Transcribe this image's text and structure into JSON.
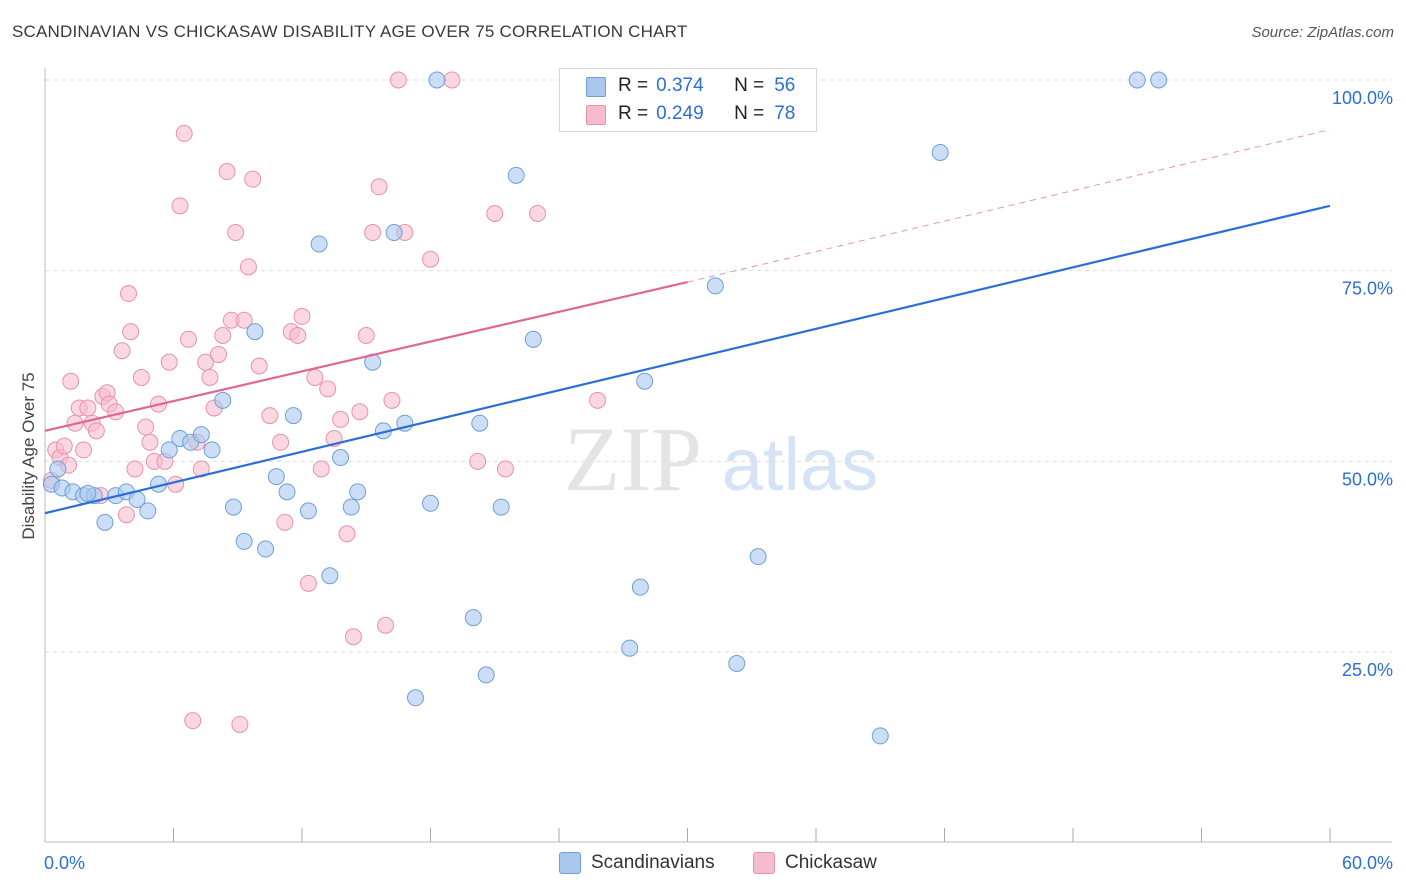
{
  "title": "SCANDINAVIAN VS CHICKASAW DISABILITY AGE OVER 75 CORRELATION CHART",
  "source": "Source: ZipAtlas.com",
  "watermark": {
    "zip": "ZIP",
    "atlas": "atlas"
  },
  "legend": {
    "rows": [
      {
        "r_label": "R =",
        "r_value": "0.374",
        "n_label": "N =",
        "n_value": "56"
      },
      {
        "r_label": "R =",
        "r_value": "0.249",
        "n_label": "N =",
        "n_value": "78"
      }
    ]
  },
  "bottom_legend": {
    "series1": "Scandinavians",
    "series2": "Chickasaw"
  },
  "colors": {
    "blue_fill": "#aac8ee",
    "blue_stroke": "#6f9fd8",
    "blue_line": "#2a6fd6",
    "pink_fill": "#f6bccd",
    "pink_stroke": "#e892ad",
    "pink_line": "#e0668f",
    "grid": "#dddddd",
    "axis_label": "#2a6fd6"
  },
  "chart_data": {
    "type": "scatter",
    "title": "SCANDINAVIAN VS CHICKASAW DISABILITY AGE OVER 75 CORRELATION CHART",
    "xlabel": "",
    "ylabel": "Disability Age Over 75",
    "xlim": [
      0,
      60
    ],
    "ylim": [
      0,
      105
    ],
    "x_tick_labels": [
      "0.0%",
      "60.0%"
    ],
    "y_tick_labels": [
      "25.0%",
      "50.0%",
      "75.0%",
      "100.0%"
    ],
    "y_ticks": [
      25,
      50,
      75,
      100
    ],
    "grid": true,
    "series": [
      {
        "name": "Scandinavians",
        "color": "#6f9fd8",
        "trend": {
          "x": [
            0,
            60
          ],
          "y": [
            43.2,
            83.5
          ]
        },
        "points": [
          [
            0.3,
            47.0
          ],
          [
            0.8,
            46.5
          ],
          [
            1.3,
            46.0
          ],
          [
            1.8,
            45.5
          ],
          [
            2.3,
            45.5
          ],
          [
            2.8,
            42.0
          ],
          [
            3.3,
            45.5
          ],
          [
            3.8,
            46.0
          ],
          [
            4.3,
            45.0
          ],
          [
            4.8,
            43.5
          ],
          [
            5.3,
            47.0
          ],
          [
            5.8,
            51.5
          ],
          [
            6.3,
            53.0
          ],
          [
            6.8,
            52.5
          ],
          [
            7.3,
            53.5
          ],
          [
            7.8,
            51.5
          ],
          [
            8.3,
            58.0
          ],
          [
            8.8,
            44.0
          ],
          [
            9.3,
            39.5
          ],
          [
            9.8,
            67.0
          ],
          [
            10.3,
            38.5
          ],
          [
            10.8,
            48.0
          ],
          [
            11.3,
            46.0
          ],
          [
            11.6,
            56.0
          ],
          [
            12.3,
            43.5
          ],
          [
            12.8,
            78.5
          ],
          [
            13.3,
            35.0
          ],
          [
            13.8,
            50.5
          ],
          [
            14.3,
            44.0
          ],
          [
            14.6,
            46.0
          ],
          [
            15.3,
            63.0
          ],
          [
            15.8,
            54.0
          ],
          [
            16.3,
            80.0
          ],
          [
            16.8,
            55.0
          ],
          [
            17.3,
            19.0
          ],
          [
            18.0,
            44.5
          ],
          [
            18.3,
            100.0
          ],
          [
            20.0,
            29.5
          ],
          [
            20.3,
            55.0
          ],
          [
            20.6,
            22.0
          ],
          [
            21.3,
            44.0
          ],
          [
            22.0,
            87.5
          ],
          [
            22.8,
            66.0
          ],
          [
            27.3,
            25.5
          ],
          [
            27.8,
            33.5
          ],
          [
            28.0,
            60.5
          ],
          [
            30.0,
            100.0
          ],
          [
            31.3,
            73.0
          ],
          [
            32.3,
            23.5
          ],
          [
            33.3,
            37.5
          ],
          [
            39.0,
            14.0
          ],
          [
            41.8,
            90.5
          ],
          [
            51.0,
            100.0
          ],
          [
            52.0,
            100.0
          ],
          [
            0.6,
            49.0
          ],
          [
            2.0,
            45.8
          ]
        ]
      },
      {
        "name": "Chickasaw",
        "color": "#e892ad",
        "trend": {
          "x": [
            0,
            30
          ],
          "y": [
            54.0,
            73.5
          ]
        },
        "trend_dashed": {
          "x": [
            30,
            60
          ],
          "y": [
            73.5,
            93.5
          ]
        },
        "points": [
          [
            0.3,
            47.5
          ],
          [
            0.5,
            51.5
          ],
          [
            0.7,
            50.5
          ],
          [
            0.9,
            52.0
          ],
          [
            1.1,
            49.5
          ],
          [
            1.2,
            60.5
          ],
          [
            1.4,
            55.0
          ],
          [
            1.6,
            57.0
          ],
          [
            1.8,
            51.5
          ],
          [
            2.0,
            57.0
          ],
          [
            2.2,
            55.0
          ],
          [
            2.4,
            54.0
          ],
          [
            2.6,
            45.5
          ],
          [
            2.7,
            58.5
          ],
          [
            2.9,
            59.0
          ],
          [
            3.0,
            57.5
          ],
          [
            3.3,
            56.5
          ],
          [
            3.6,
            64.5
          ],
          [
            3.8,
            43.0
          ],
          [
            3.9,
            72.0
          ],
          [
            4.0,
            67.0
          ],
          [
            4.2,
            49.0
          ],
          [
            4.5,
            61.0
          ],
          [
            4.7,
            54.5
          ],
          [
            4.9,
            52.5
          ],
          [
            5.1,
            50.0
          ],
          [
            5.3,
            57.5
          ],
          [
            5.6,
            50.0
          ],
          [
            5.8,
            63.0
          ],
          [
            6.1,
            47.0
          ],
          [
            6.3,
            83.5
          ],
          [
            6.5,
            93.0
          ],
          [
            6.7,
            66.0
          ],
          [
            6.9,
            16.0
          ],
          [
            7.1,
            52.5
          ],
          [
            7.3,
            49.0
          ],
          [
            7.5,
            63.0
          ],
          [
            7.7,
            61.0
          ],
          [
            7.9,
            57.0
          ],
          [
            8.1,
            64.0
          ],
          [
            8.3,
            66.5
          ],
          [
            8.5,
            88.0
          ],
          [
            8.7,
            68.5
          ],
          [
            8.9,
            80.0
          ],
          [
            9.1,
            15.5
          ],
          [
            9.3,
            68.5
          ],
          [
            9.5,
            75.5
          ],
          [
            9.7,
            87.0
          ],
          [
            10.0,
            62.5
          ],
          [
            10.5,
            56.0
          ],
          [
            11.0,
            52.5
          ],
          [
            11.2,
            42.0
          ],
          [
            11.5,
            67.0
          ],
          [
            11.8,
            66.5
          ],
          [
            12.0,
            69.0
          ],
          [
            12.3,
            34.0
          ],
          [
            12.6,
            61.0
          ],
          [
            12.9,
            49.0
          ],
          [
            13.2,
            59.5
          ],
          [
            13.5,
            53.0
          ],
          [
            13.8,
            55.5
          ],
          [
            14.1,
            40.5
          ],
          [
            14.4,
            27.0
          ],
          [
            14.7,
            56.5
          ],
          [
            15.0,
            66.5
          ],
          [
            15.3,
            80.0
          ],
          [
            15.6,
            86.0
          ],
          [
            15.9,
            28.5
          ],
          [
            16.2,
            58.0
          ],
          [
            16.5,
            100.0
          ],
          [
            16.8,
            80.0
          ],
          [
            18.0,
            76.5
          ],
          [
            19.0,
            100.0
          ],
          [
            20.2,
            50.0
          ],
          [
            21.0,
            82.5
          ],
          [
            21.5,
            49.0
          ],
          [
            23.0,
            82.5
          ],
          [
            25.8,
            58.0
          ]
        ]
      }
    ]
  }
}
